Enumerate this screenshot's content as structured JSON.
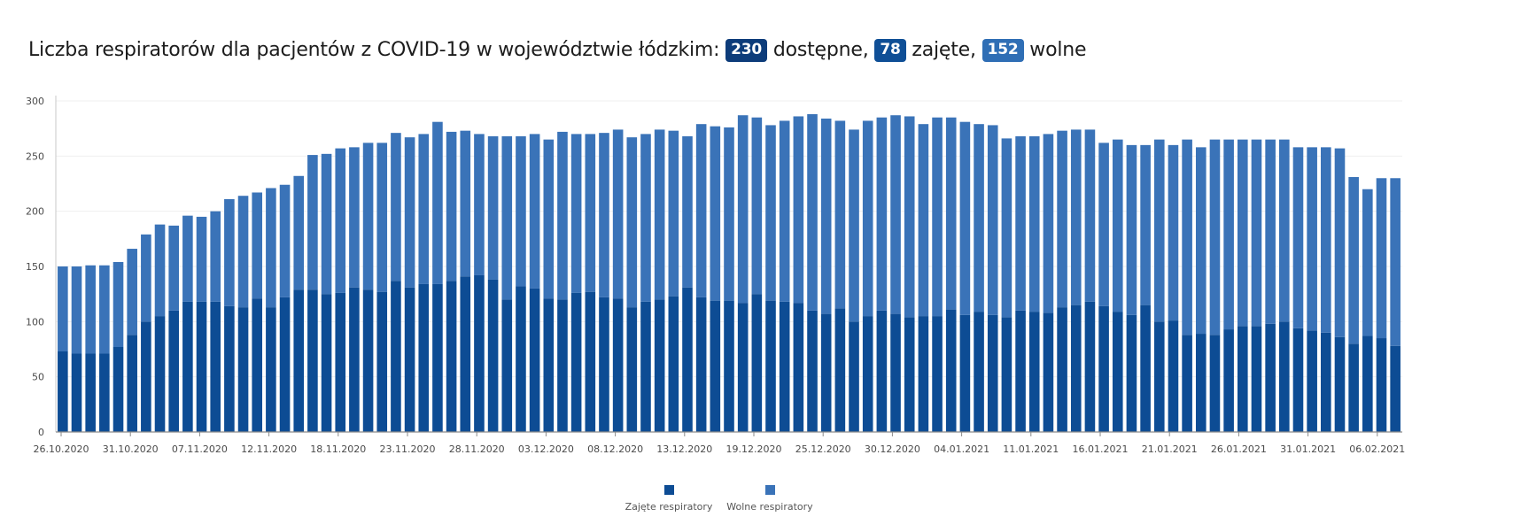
{
  "title": {
    "text_prefix": "Liczba respiratorów dla pacjentów z COVID-19 w województwie łódzkim:",
    "available_value": "230",
    "available_label": "dostępne,",
    "occupied_value": "78",
    "occupied_label": "zajęte,",
    "free_value": "152",
    "free_label": "wolne"
  },
  "colors": {
    "occupied": "#0d4c94",
    "free": "#3a73b8",
    "badge_available": "#0d3c7a",
    "badge_occupied": "#0f4f96",
    "badge_free": "#2f6eb5"
  },
  "chart_data": {
    "type": "bar",
    "stacked": true,
    "ylim": [
      0,
      300
    ],
    "yticks": [
      0,
      50,
      100,
      150,
      200,
      250,
      300
    ],
    "grid": true,
    "legend_position": "bottom",
    "x_tick_labels": [
      "26.10.2020",
      "31.10.2020",
      "07.11.2020",
      "12.11.2020",
      "18.11.2020",
      "23.11.2020",
      "28.11.2020",
      "03.12.2020",
      "08.12.2020",
      "13.12.2020",
      "19.12.2020",
      "25.12.2020",
      "30.12.2020",
      "04.01.2021",
      "11.01.2021",
      "16.01.2021",
      "21.01.2021",
      "26.01.2021",
      "31.01.2021",
      "06.02.2021"
    ],
    "series": [
      {
        "name": "Zajęte respiratory",
        "values": [
          73,
          71,
          71,
          71,
          77,
          88,
          100,
          105,
          110,
          118,
          118,
          118,
          114,
          113,
          121,
          113,
          122,
          129,
          129,
          125,
          126,
          131,
          129,
          127,
          137,
          131,
          134,
          134,
          137,
          141,
          142,
          138,
          120,
          132,
          130,
          121,
          120,
          126,
          127,
          122,
          121,
          113,
          118,
          120,
          123,
          131,
          122,
          119,
          119,
          117,
          125,
          119,
          118,
          117,
          110,
          107,
          112,
          100,
          105,
          110,
          107,
          104,
          105,
          105,
          111,
          106,
          109,
          106,
          104,
          110,
          109,
          108,
          113,
          115,
          118,
          114,
          109,
          106,
          115,
          100,
          101,
          88,
          89,
          88,
          93,
          96,
          96,
          98,
          100,
          94,
          92,
          90,
          86,
          80,
          87,
          85,
          78
        ]
      },
      {
        "name": "Wolne respiratory",
        "values": [
          77,
          79,
          80,
          80,
          77,
          78,
          79,
          83,
          77,
          78,
          77,
          82,
          97,
          101,
          96,
          108,
          102,
          103,
          122,
          127,
          131,
          127,
          133,
          135,
          134,
          136,
          136,
          147,
          135,
          132,
          128,
          130,
          148,
          136,
          140,
          144,
          152,
          144,
          143,
          149,
          153,
          154,
          152,
          154,
          150,
          137,
          157,
          158,
          157,
          170,
          160,
          159,
          164,
          169,
          178,
          177,
          170,
          174,
          177,
          175,
          180,
          182,
          174,
          180,
          174,
          175,
          170,
          172,
          162,
          158,
          159,
          162,
          160,
          159,
          156,
          148,
          156,
          154,
          145,
          165,
          159,
          177,
          169,
          177,
          172,
          169,
          169,
          167,
          165,
          164,
          166,
          168,
          171,
          151,
          133,
          145,
          152
        ]
      }
    ]
  },
  "legend": {
    "occupied_label": "Zajęte respiratory",
    "free_label": "Wolne respiratory"
  }
}
